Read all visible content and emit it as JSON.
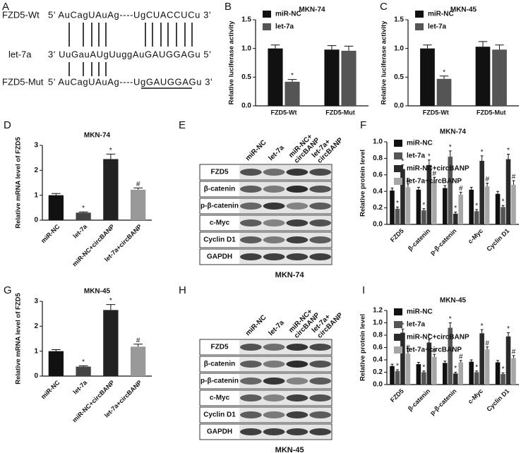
{
  "panel_labels": [
    "A",
    "B",
    "C",
    "D",
    "E",
    "F",
    "G",
    "H",
    "I"
  ],
  "alignment": {
    "rows": [
      {
        "name": "FZD5-Wt",
        "sequence": "5' AuCagUAuAg----UgCUACCUCu 3'"
      },
      {
        "name": "let-7a",
        "sequence": "3' UuGauAUgUuggAuGAUGGAGu 5'"
      },
      {
        "name": "FZD5-Mut",
        "sequence": "5' AuCagUAuAg----UgGAUGGAGu 3'"
      }
    ]
  },
  "blots": [
    {
      "lanes": [
        [
          "miR-NC"
        ],
        [
          "let-7a"
        ],
        [
          "miR-NC+",
          "circBANP"
        ],
        [
          "let-7a+",
          "circBANP"
        ]
      ],
      "proteins": [
        "FZD5",
        "β-catenin",
        "p-β-catenin",
        "c-Myc",
        "Cyclin D1",
        "GAPDH"
      ],
      "cell_line": "MKN-74"
    },
    {
      "lanes": [
        [
          "miR-NC"
        ],
        [
          "let-7a"
        ],
        [
          "miR-NC+",
          "circBANP"
        ],
        [
          "let-7a+",
          "circBANP"
        ]
      ],
      "proteins": [
        "FZD5",
        "β-catenin",
        "p-β-catenin",
        "c-Myc",
        "Cyclin D1",
        "GAPDH"
      ],
      "cell_line": "MKN-45"
    }
  ],
  "chart_data": [
    {
      "type": "grouped_bar",
      "title": "MKN-74",
      "y_label": "Relative luciferase activity",
      "categories": [
        "FZD5-Wt",
        "FZD5-Mut"
      ],
      "series": [
        {
          "name": "miR-NC",
          "color": "#111111",
          "values": [
            1,
            0.98
          ],
          "errors": [
            0.06,
            0.07
          ],
          "sig": [
            null,
            null
          ]
        },
        {
          "name": "let-7a",
          "color": "#555555",
          "values": [
            0.42,
            0.96
          ],
          "errors": [
            0.04,
            0.08
          ],
          "sig": [
            "*",
            null
          ]
        }
      ],
      "ylim": [
        0,
        1.5
      ],
      "yticks": [
        {
          "value": 0,
          "label": "0.0"
        },
        0.5,
        {
          "value": 1,
          "label": "1.0"
        },
        1.5
      ],
      "legend": "upper left"
    },
    {
      "type": "grouped_bar",
      "title": "MKN-45",
      "y_label": "Relative luciferase activity",
      "categories": [
        "FZD5-Wt",
        "FZD5-Mut"
      ],
      "series": [
        {
          "name": "miR-NC",
          "color": "#111111",
          "values": [
            1,
            1.03
          ],
          "errors": [
            0.06,
            0.09
          ],
          "sig": [
            null,
            null
          ]
        },
        {
          "name": "let-7a",
          "color": "#555555",
          "values": [
            0.47,
            0.98
          ],
          "errors": [
            0.05,
            0.08
          ],
          "sig": [
            "*",
            null
          ]
        }
      ],
      "ylim": [
        0,
        1.5
      ],
      "yticks": [
        {
          "value": 0,
          "label": "0.0"
        },
        0.5,
        {
          "value": 1,
          "label": "1.0"
        },
        1.5
      ],
      "legend": "upper left"
    },
    {
      "type": "bar",
      "title": "MKN-74",
      "y_label": "Relative mRNA level of FZD5",
      "categories": [
        "miR-NC",
        "let-7a",
        "miR-NC+circBANP",
        "let-7a+circBANP"
      ],
      "values": [
        1,
        0.3,
        2.45,
        1.22
      ],
      "errors": [
        0.07,
        0.03,
        0.2,
        0.07
      ],
      "colors": [
        "#111111",
        "#444444",
        "#222222",
        "#999999"
      ],
      "sig": [
        null,
        "*",
        "*",
        "#"
      ],
      "ylim": [
        0,
        3
      ],
      "yticks": [
        0,
        1,
        2,
        3
      ]
    },
    {
      "type": "grouped_bar",
      "title": "MKN-74",
      "y_label": "Relative protein level",
      "categories": [
        "FZD5",
        "β-catenin",
        "p-β-catenin",
        "c-Myc",
        "Cyclin D1"
      ],
      "series": [
        {
          "name": "miR-NC",
          "color": "#111111",
          "values": [
            0.41,
            0.42,
            0.44,
            0.42,
            0.37
          ],
          "errors": [
            0.03,
            0.03,
            0.03,
            0.03,
            0.03
          ],
          "sig": [
            null,
            null,
            null,
            null,
            null
          ]
        },
        {
          "name": "let-7a",
          "color": "#555555",
          "values": [
            0.19,
            0.17,
            0.82,
            0.16,
            0.21
          ],
          "errors": [
            0.02,
            0.02,
            0.07,
            0.02,
            0.02
          ],
          "sig": [
            "*",
            "*",
            "*",
            "*",
            "*"
          ]
        },
        {
          "name": "miR-NC+circBANP",
          "color": "#2a2a2a",
          "values": [
            0.67,
            0.72,
            0.13,
            0.77,
            0.79
          ],
          "errors": [
            0.05,
            0.06,
            0.02,
            0.06,
            0.06
          ],
          "sig": [
            "*",
            "*",
            "*",
            "*",
            "*"
          ]
        },
        {
          "name": "let-7a+circBANP",
          "color": "#a6a6a6",
          "values": [
            0.45,
            0.52,
            0.36,
            0.46,
            0.48
          ],
          "errors": [
            0.04,
            0.05,
            0.03,
            0.04,
            0.05
          ],
          "sig": [
            "#",
            "#",
            "#",
            "#",
            "#"
          ]
        }
      ],
      "ylim": [
        0,
        1
      ],
      "yticks": [
        {
          "value": 0,
          "label": "0.0"
        },
        0.2,
        0.4,
        0.6,
        0.8,
        {
          "value": 1,
          "label": "1.0"
        }
      ],
      "legend": "upper left"
    },
    {
      "type": "bar",
      "title": "MKN-45",
      "y_label": "Relative mRNA level of FZD5",
      "categories": [
        "miR-NC",
        "let-7a",
        "miR-NC+circBANP",
        "let-7a+circBANP"
      ],
      "values": [
        1,
        0.38,
        2.65,
        1.18
      ],
      "errors": [
        0.06,
        0.03,
        0.22,
        0.1
      ],
      "colors": [
        "#111111",
        "#444444",
        "#222222",
        "#999999"
      ],
      "sig": [
        null,
        "*",
        "*",
        "#"
      ],
      "ylim": [
        0,
        3
      ],
      "yticks": [
        0,
        1,
        2,
        3
      ]
    },
    {
      "type": "grouped_bar",
      "title": "MKN-45",
      "y_label": "Relative protein level",
      "categories": [
        "FZD5",
        "β-catenin",
        "p-β-catenin",
        "c-Myc",
        "Cyclin D1"
      ],
      "series": [
        {
          "name": "miR-NC",
          "color": "#111111",
          "values": [
            0.3,
            0.33,
            0.35,
            0.37,
            0.36
          ],
          "errors": [
            0.03,
            0.03,
            0.03,
            0.03,
            0.03
          ],
          "sig": [
            null,
            null,
            null,
            null,
            null
          ]
        },
        {
          "name": "let-7a",
          "color": "#555555",
          "values": [
            0.22,
            0.2,
            0.92,
            0.2,
            0.17
          ],
          "errors": [
            0.02,
            0.02,
            0.08,
            0.02,
            0.02
          ],
          "sig": [
            "*",
            "*",
            "*",
            "*",
            "*"
          ]
        },
        {
          "name": "miR-NC+circBANP",
          "color": "#2a2a2a",
          "values": [
            0.84,
            0.68,
            0.18,
            0.83,
            0.78
          ],
          "errors": [
            0.06,
            0.05,
            0.02,
            0.06,
            0.06
          ],
          "sig": [
            "*",
            "*",
            "*",
            "*",
            "*"
          ]
        },
        {
          "name": "let-7a+circBANP",
          "color": "#a6a6a6",
          "values": [
            0.5,
            0.45,
            0.36,
            0.57,
            0.43
          ],
          "errors": [
            0.04,
            0.04,
            0.03,
            0.04,
            0.04
          ],
          "sig": [
            "#",
            "#",
            "#",
            "#",
            "#"
          ]
        }
      ],
      "ylim": [
        0,
        1.2
      ],
      "yticks": [
        {
          "value": 0,
          "label": "0.0"
        },
        0.2,
        0.4,
        0.6,
        0.8,
        {
          "value": 1,
          "label": "1.0"
        },
        1.2
      ],
      "legend": "upper left"
    }
  ]
}
